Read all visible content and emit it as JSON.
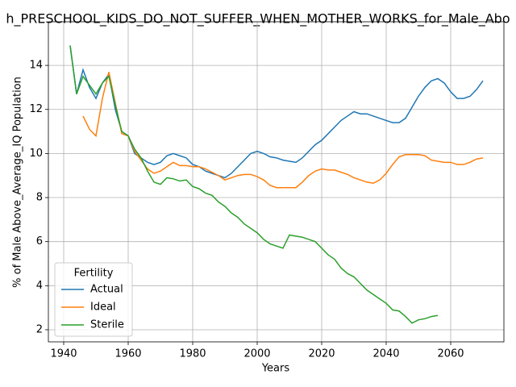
{
  "chart_data": {
    "type": "line",
    "title": "h_PRESCHOOL_KIDS_DO_NOT_SUFFER_WHEN_MOTHER_WORKS_for_Male_Abo",
    "xlabel": "Years",
    "ylabel": "% of Male Above_Average_IQ Population",
    "legend_title": "Fertility",
    "legend": "lower left",
    "grid": true,
    "x": [
      1942,
      1944,
      1946,
      1948,
      1950,
      1952,
      1954,
      1956,
      1958,
      1960,
      1962,
      1964,
      1966,
      1968,
      1970,
      1972,
      1974,
      1976,
      1978,
      1980,
      1982,
      1984,
      1986,
      1988,
      1990,
      1992,
      1994,
      1996,
      1998,
      2000,
      2002,
      2004,
      2006,
      2008,
      2010,
      2012,
      2014,
      2016,
      2018,
      2020,
      2022,
      2024,
      2026,
      2028,
      2030,
      2032,
      2034,
      2036,
      2038,
      2040,
      2042,
      2044,
      2046,
      2048,
      2050,
      2052,
      2054,
      2056,
      2058,
      2060,
      2062,
      2064,
      2066,
      2068,
      2070
    ],
    "series": [
      {
        "name": "Actual",
        "color": "#1f77b4",
        "values": [
          14.9,
          12.7,
          13.8,
          13.0,
          12.5,
          13.2,
          13.6,
          12.0,
          11.0,
          10.8,
          10.0,
          9.8,
          9.6,
          9.5,
          9.6,
          9.9,
          10.0,
          9.9,
          9.8,
          9.5,
          9.4,
          9.2,
          9.1,
          9.0,
          8.9,
          9.1,
          9.4,
          9.7,
          10.0,
          10.1,
          10.0,
          9.85,
          9.8,
          9.7,
          9.65,
          9.6,
          9.8,
          10.1,
          10.4,
          10.6,
          10.9,
          11.2,
          11.5,
          11.7,
          11.9,
          11.8,
          11.8,
          11.7,
          11.6,
          11.5,
          11.4,
          11.4,
          11.6,
          12.1,
          12.6,
          13.0,
          13.3,
          13.4,
          13.2,
          12.8,
          12.5,
          12.5,
          12.6,
          12.9,
          13.3
        ]
      },
      {
        "name": "Ideal",
        "color": "#ff7f0e",
        "values": [
          null,
          null,
          11.7,
          11.1,
          10.8,
          12.5,
          13.7,
          12.3,
          10.9,
          10.8,
          10.1,
          9.7,
          9.3,
          9.1,
          9.2,
          9.4,
          9.6,
          9.45,
          9.45,
          9.4,
          9.4,
          9.3,
          9.15,
          9.0,
          8.8,
          8.9,
          9.0,
          9.05,
          9.05,
          8.95,
          8.8,
          8.55,
          8.45,
          8.45,
          8.45,
          8.45,
          8.7,
          9.0,
          9.2,
          9.3,
          9.25,
          9.25,
          9.15,
          9.05,
          8.9,
          8.8,
          8.7,
          8.65,
          8.8,
          9.1,
          9.5,
          9.85,
          9.95,
          9.95,
          9.95,
          9.9,
          9.7,
          9.65,
          9.6,
          9.6,
          9.5,
          9.5,
          9.6,
          9.75,
          9.8
        ]
      },
      {
        "name": "Sterile",
        "color": "#2ca02c",
        "values": [
          14.9,
          12.7,
          13.5,
          13.1,
          12.7,
          13.2,
          13.5,
          12.2,
          11.0,
          10.8,
          10.2,
          9.8,
          9.2,
          8.7,
          8.6,
          8.9,
          8.85,
          8.75,
          8.8,
          8.5,
          8.4,
          8.2,
          8.1,
          7.8,
          7.6,
          7.3,
          7.1,
          6.8,
          6.6,
          6.4,
          6.1,
          5.9,
          5.8,
          5.7,
          6.3,
          6.25,
          6.2,
          6.1,
          6.0,
          5.7,
          5.4,
          5.2,
          4.8,
          4.55,
          4.4,
          4.1,
          3.8,
          3.6,
          3.4,
          3.2,
          2.9,
          2.85,
          2.6,
          2.3,
          2.45,
          2.5,
          2.6,
          2.65,
          null,
          null,
          null,
          null,
          null,
          null,
          null
        ]
      }
    ],
    "xlim": [
      1935.25,
      2076.5
    ],
    "xticks": [
      1940,
      1960,
      1980,
      2000,
      2020,
      2040,
      2060
    ],
    "ylim": [
      1.45,
      15.98
    ],
    "yticks": [
      2,
      4,
      6,
      8,
      10,
      12,
      14
    ]
  }
}
